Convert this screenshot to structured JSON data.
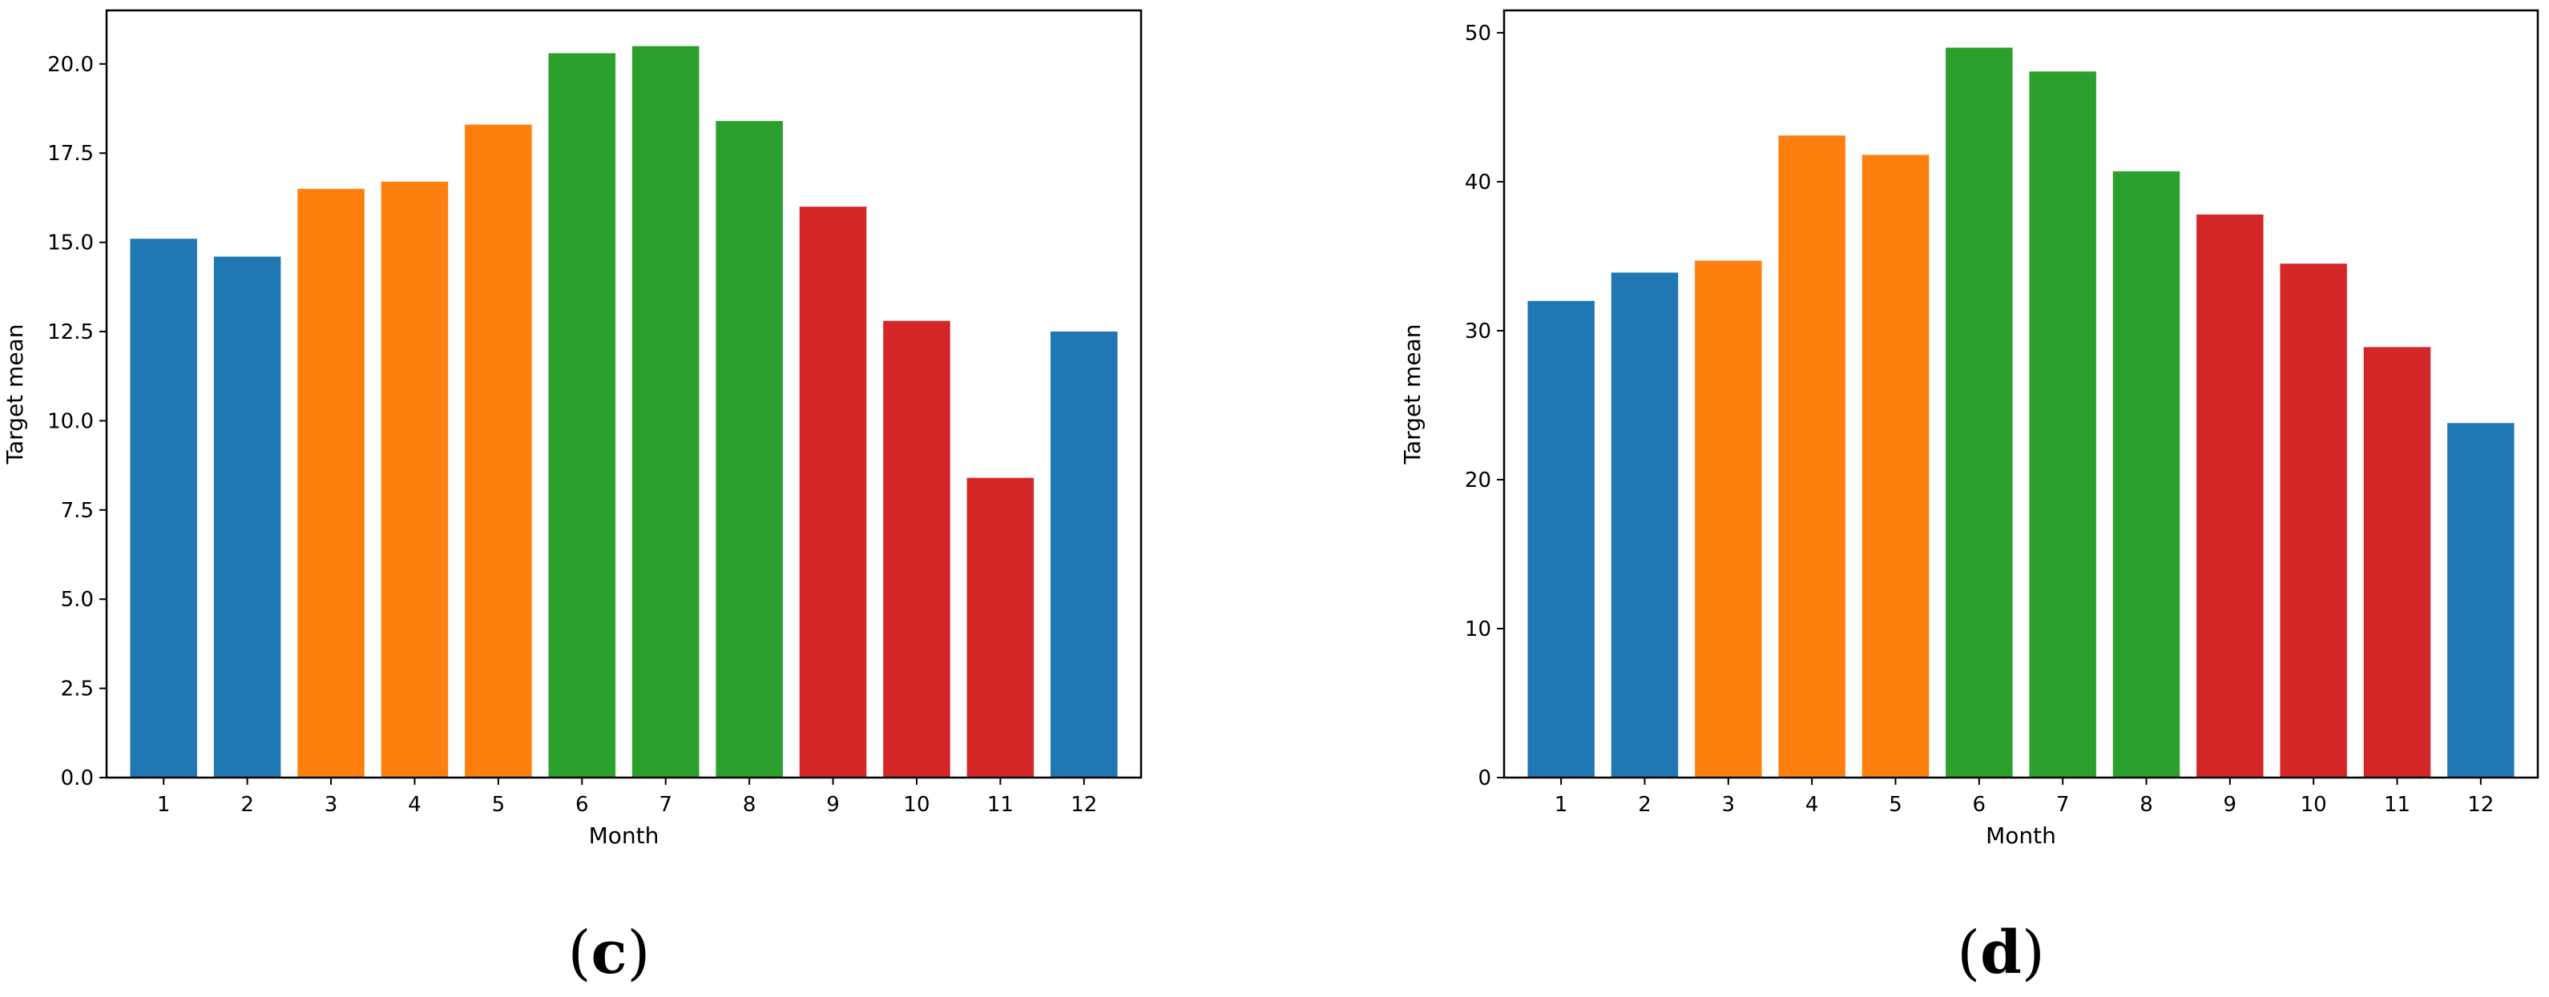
{
  "chart_data": [
    {
      "type": "bar",
      "panel_label": "c",
      "categories": [
        "1",
        "2",
        "3",
        "4",
        "5",
        "6",
        "7",
        "8",
        "9",
        "10",
        "11",
        "12"
      ],
      "values": [
        15.1,
        14.6,
        16.5,
        16.7,
        18.3,
        20.3,
        20.5,
        18.4,
        16.0,
        12.8,
        8.4,
        12.5
      ],
      "colors": [
        "#1f77b4",
        "#1f77b4",
        "#ff7f0e",
        "#ff7f0e",
        "#ff7f0e",
        "#2ca02c",
        "#2ca02c",
        "#2ca02c",
        "#d62728",
        "#d62728",
        "#d62728",
        "#1f77b4"
      ],
      "title": "",
      "xlabel": "Month",
      "ylabel": "Target mean",
      "ylim": [
        0,
        21.5
      ],
      "yticks": [
        0.0,
        2.5,
        5.0,
        7.5,
        10.0,
        12.5,
        15.0,
        17.5,
        20.0
      ],
      "ytick_labels": [
        "0.0",
        "2.5",
        "5.0",
        "7.5",
        "10.0",
        "12.5",
        "15.0",
        "17.5",
        "20.0"
      ],
      "grid": false
    },
    {
      "type": "bar",
      "panel_label": "d",
      "categories": [
        "1",
        "2",
        "3",
        "4",
        "5",
        "6",
        "7",
        "8",
        "9",
        "10",
        "11",
        "12"
      ],
      "values": [
        32.0,
        33.9,
        34.7,
        43.1,
        41.8,
        49.0,
        47.4,
        40.7,
        37.8,
        34.5,
        28.9,
        23.8
      ],
      "colors": [
        "#1f77b4",
        "#1f77b4",
        "#ff7f0e",
        "#ff7f0e",
        "#ff7f0e",
        "#2ca02c",
        "#2ca02c",
        "#2ca02c",
        "#d62728",
        "#d62728",
        "#d62728",
        "#1f77b4"
      ],
      "title": "",
      "xlabel": "Month",
      "ylabel": "Target mean",
      "ylim": [
        0,
        51.5
      ],
      "yticks": [
        0,
        10,
        20,
        30,
        40,
        50
      ],
      "ytick_labels": [
        "0",
        "10",
        "20",
        "30",
        "40",
        "50"
      ],
      "grid": false
    }
  ],
  "captions": {
    "left": {
      "open": "(",
      "letter": "c",
      "close": ")"
    },
    "right": {
      "open": "(",
      "letter": "d",
      "close": ")"
    }
  }
}
